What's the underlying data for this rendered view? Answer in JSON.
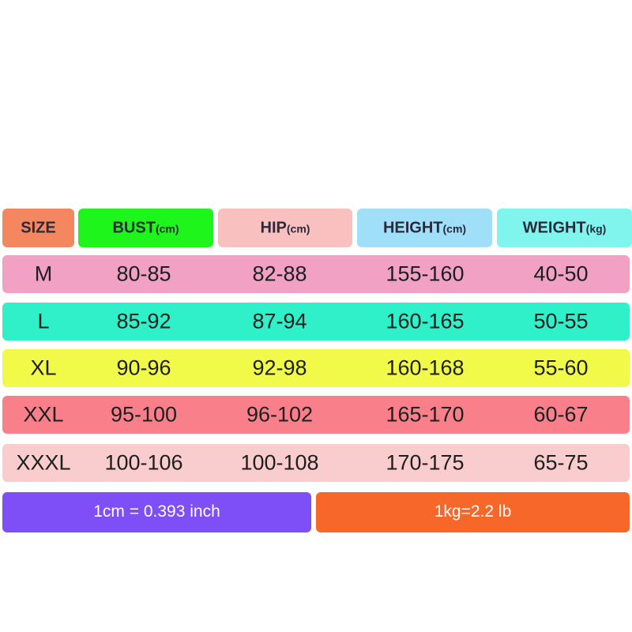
{
  "table": {
    "header": [
      {
        "label": "SIZE"
      },
      {
        "label": "BUST",
        "unit": "(cm)"
      },
      {
        "label": "HIP",
        "unit": "(cm)"
      },
      {
        "label": "HEIGHT",
        "unit": "(cm)"
      },
      {
        "label": "WEIGHT",
        "unit": "(kg)"
      }
    ],
    "rows": [
      [
        "M",
        "80-85",
        "82-88",
        "155-160",
        "40-50"
      ],
      [
        "L",
        "85-92",
        "87-94",
        "160-165",
        "50-55"
      ],
      [
        "XL",
        "90-96",
        "92-98",
        "160-168",
        "55-60"
      ],
      [
        "XXL",
        "95-100",
        "96-102",
        "165-170",
        "60-67"
      ],
      [
        "XXXL",
        "100-106",
        "100-108",
        "170-175",
        "65-75"
      ]
    ]
  },
  "footer": [
    "1cm = 0.393 inch",
    "1kg=2.2 lb"
  ]
}
